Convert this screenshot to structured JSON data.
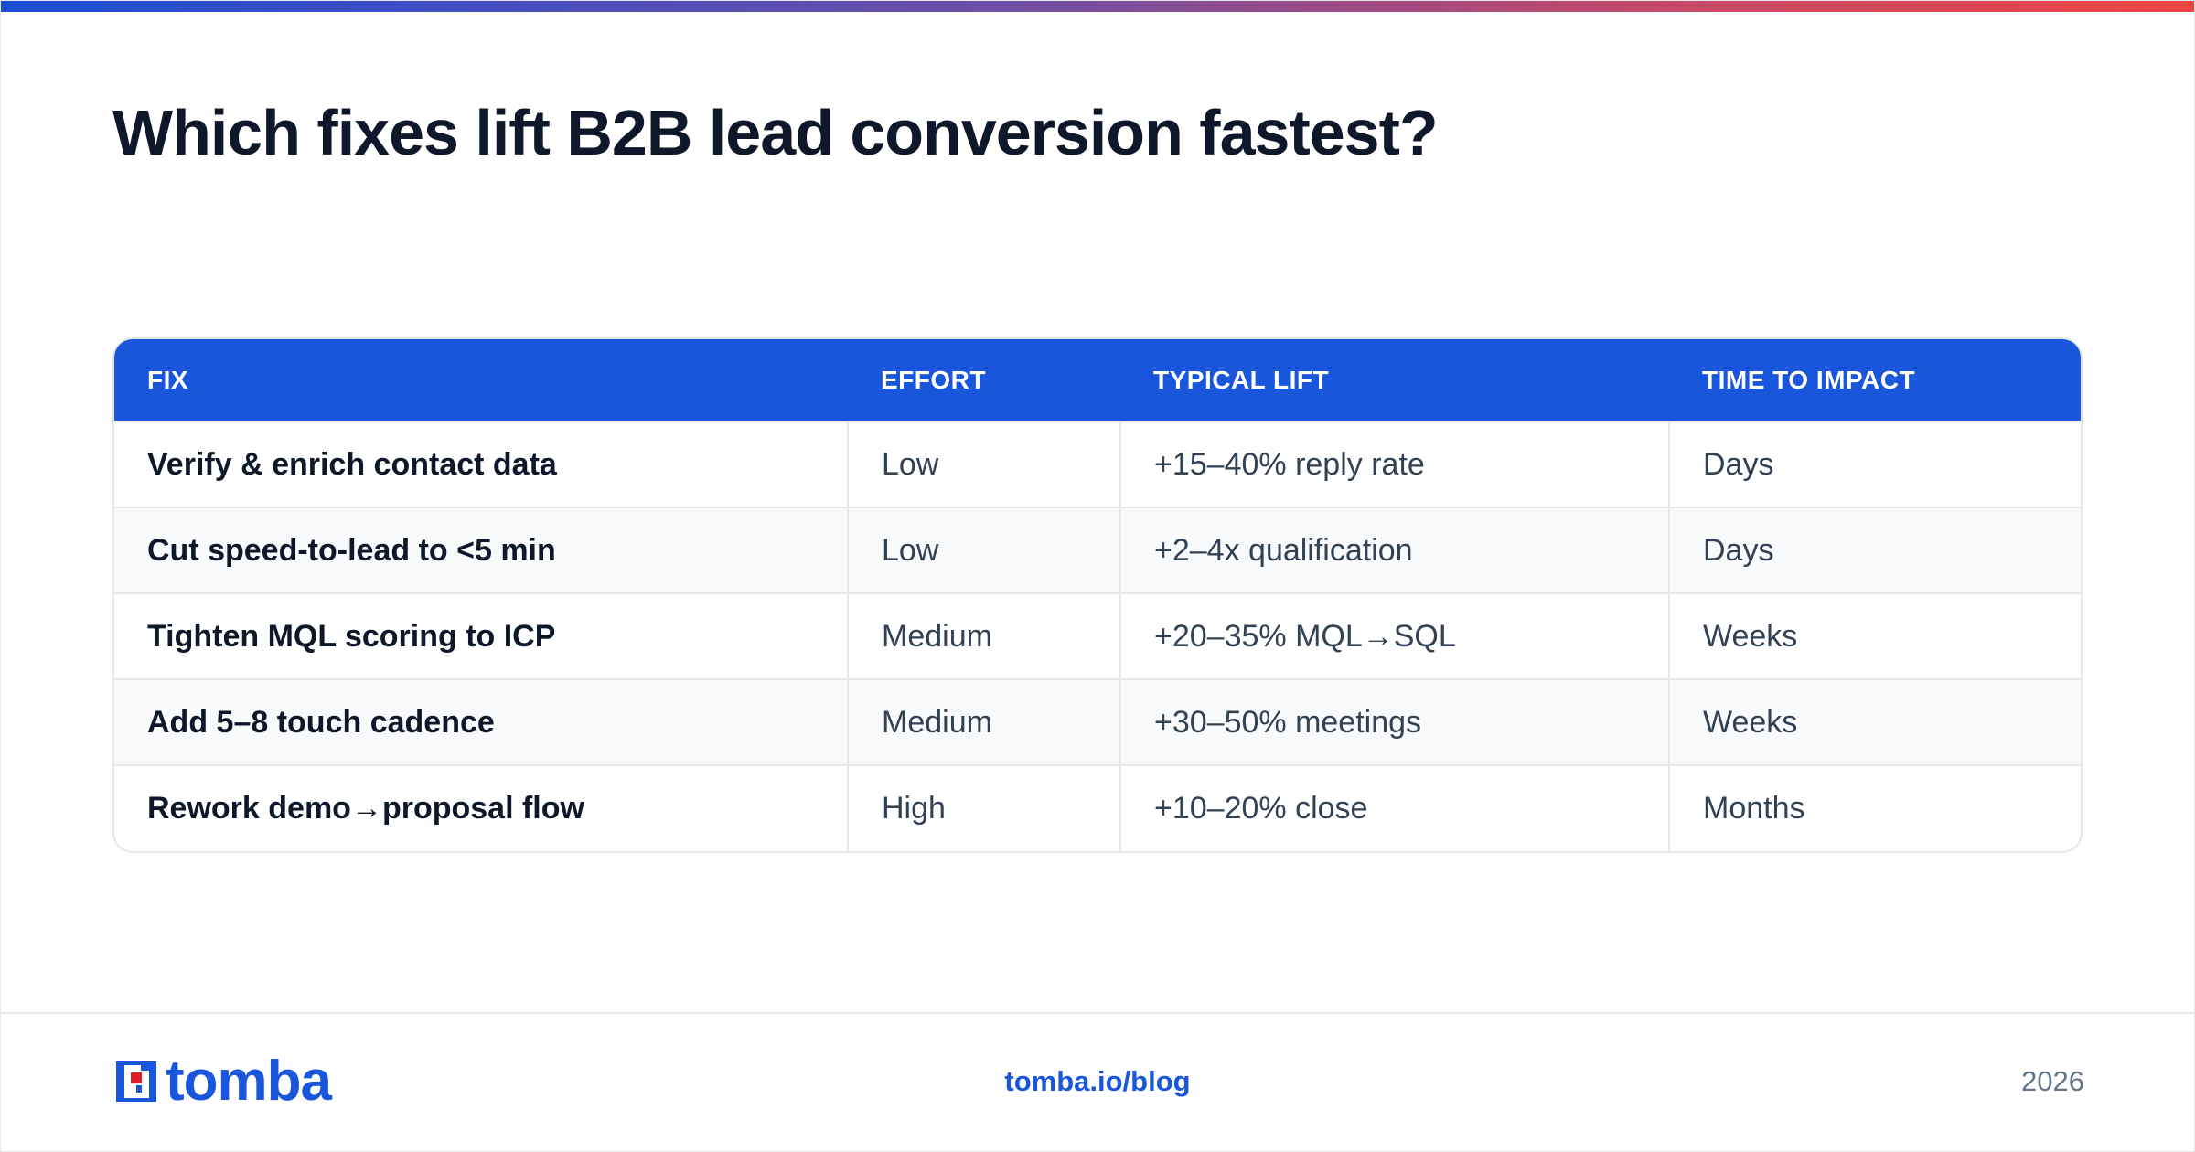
{
  "title": "Which fixes lift B2B lead conversion fastest?",
  "colors": {
    "accent": "#1a56db",
    "gradient_start": "#1d4ed8",
    "gradient_end": "#ef4444",
    "logo_red": "#e11d2a"
  },
  "table": {
    "headers": {
      "fix": "FIX",
      "effort": "EFFORT",
      "lift": "TYPICAL LIFT",
      "time": "TIME TO IMPACT"
    },
    "rows": [
      {
        "fix": "Verify & enrich contact data",
        "effort": "Low",
        "lift": "+15–40% reply rate",
        "time": "Days"
      },
      {
        "fix": "Cut speed-to-lead to <5 min",
        "effort": "Low",
        "lift": "+2–4x qualification",
        "time": "Days"
      },
      {
        "fix": "Tighten MQL scoring to ICP",
        "effort": "Medium",
        "lift": "+20–35% MQL→SQL",
        "time": "Weeks"
      },
      {
        "fix": "Add 5–8 touch cadence",
        "effort": "Medium",
        "lift": "+30–50% meetings",
        "time": "Weeks"
      },
      {
        "fix": "Rework demo→proposal flow",
        "effort": "High",
        "lift": "+10–20% close",
        "time": "Months"
      }
    ]
  },
  "footer": {
    "logo_text": "tomba",
    "logo_icon": "tomba-logo-icon",
    "link": "tomba.io/blog",
    "year": "2026"
  }
}
